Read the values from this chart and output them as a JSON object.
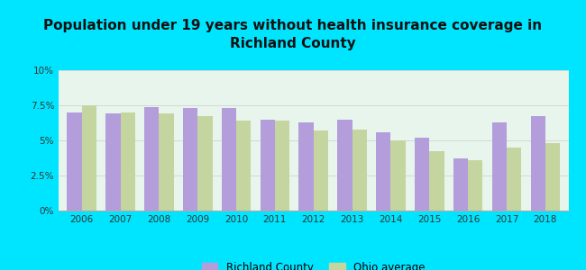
{
  "title": "Population under 19 years without health insurance coverage in\nRichland County",
  "years": [
    2006,
    2007,
    2008,
    2009,
    2010,
    2011,
    2012,
    2013,
    2014,
    2015,
    2016,
    2017,
    2018
  ],
  "richland": [
    7.0,
    6.9,
    7.4,
    7.3,
    7.3,
    6.5,
    6.3,
    6.5,
    5.6,
    5.2,
    3.7,
    6.3,
    6.7
  ],
  "ohio": [
    7.5,
    7.0,
    6.9,
    6.7,
    6.4,
    6.4,
    5.7,
    5.8,
    5.0,
    4.2,
    3.6,
    4.5,
    4.8
  ],
  "richland_color": "#b39ddb",
  "ohio_color": "#c5d5a0",
  "bg_outer": "#00e5ff",
  "bg_plot_top": "#d4ede0",
  "bg_plot_bottom": "#f0f8f0",
  "ylim": [
    0,
    10
  ],
  "yticks": [
    0,
    2.5,
    5.0,
    7.5,
    10.0
  ],
  "ytick_labels": [
    "0%",
    "2.5%",
    "5%",
    "7.5%",
    "10%"
  ],
  "title_fontsize": 11,
  "bar_width": 0.38,
  "legend_richland": "Richland County",
  "legend_ohio": "Ohio average"
}
